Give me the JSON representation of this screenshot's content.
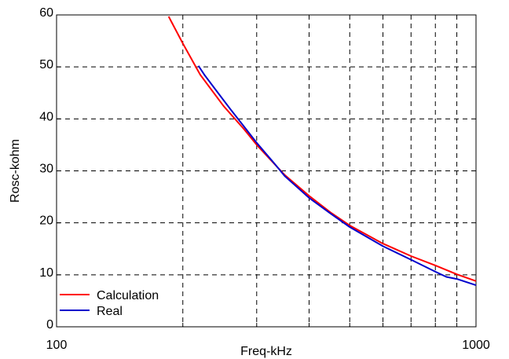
{
  "chart_data": {
    "type": "line",
    "title": "",
    "xlabel": "Freq-kHz",
    "ylabel": "Rosc-kohm",
    "xscale": "log",
    "xlim": [
      100,
      1000
    ],
    "ylim": [
      0,
      60
    ],
    "x_ticks": [
      100,
      1000
    ],
    "x_tick_labels": [
      "100",
      "1000"
    ],
    "x_minor_gridlines": [
      200,
      300,
      400,
      500,
      600,
      700,
      800,
      900
    ],
    "y_ticks": [
      0,
      10,
      20,
      30,
      40,
      50,
      60
    ],
    "y_tick_labels": [
      "0",
      "10",
      "20",
      "30",
      "40",
      "50",
      "60"
    ],
    "grid": true,
    "grid_style": "dashed",
    "legend_position": "bottom-left",
    "series": [
      {
        "name": "Calculation",
        "color": "#ff0000",
        "x": [
          185,
          200,
          220,
          250,
          280,
          300,
          350,
          400,
          450,
          500,
          600,
          700,
          800,
          900,
          1000
        ],
        "y": [
          59.7,
          54.5,
          48.5,
          42.5,
          38.0,
          35.0,
          29.2,
          25.2,
          22.0,
          19.5,
          16.0,
          13.6,
          11.8,
          10.1,
          8.8
        ]
      },
      {
        "name": "Real",
        "color": "#0000cc",
        "x": [
          218,
          225,
          240,
          260,
          280,
          300,
          330,
          350,
          400,
          450,
          500,
          600,
          700,
          800,
          850,
          900,
          1000
        ],
        "y": [
          50.2,
          48.5,
          45.5,
          41.8,
          38.5,
          35.4,
          31.5,
          29.0,
          24.8,
          21.8,
          19.2,
          15.5,
          12.9,
          10.6,
          9.6,
          9.2,
          8.0
        ]
      }
    ]
  }
}
